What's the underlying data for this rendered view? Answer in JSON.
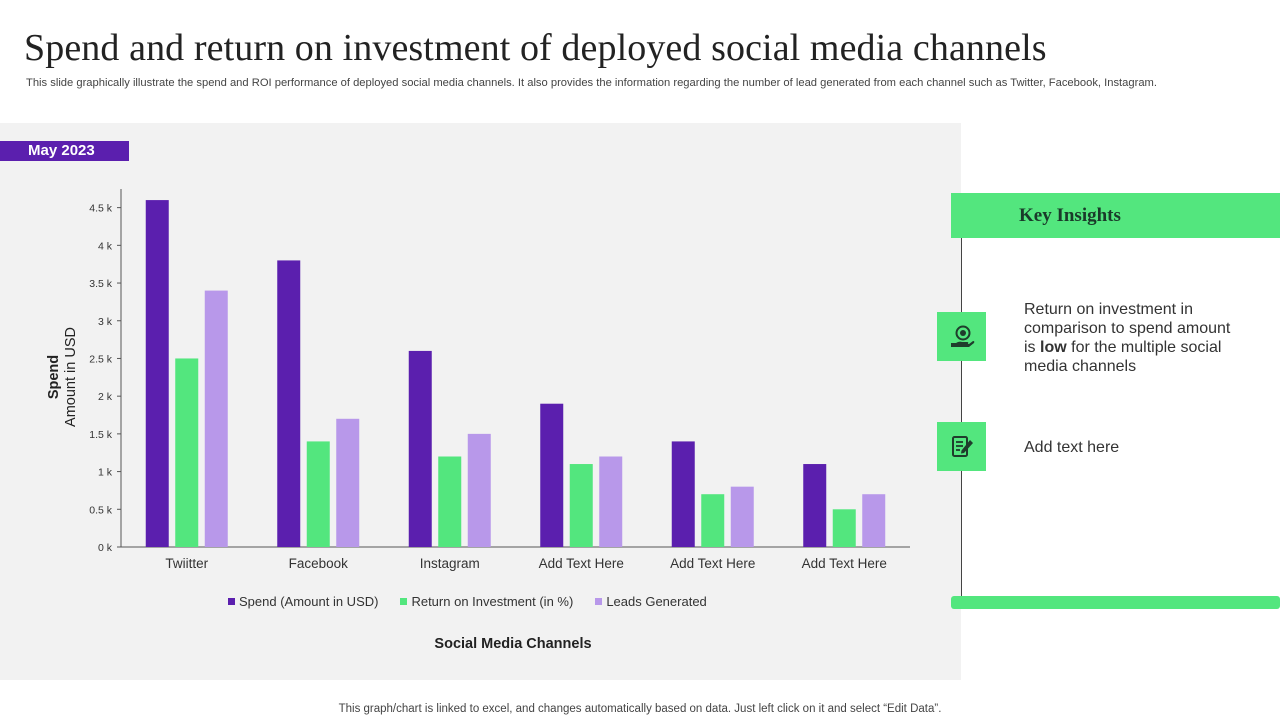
{
  "header": {
    "title": "Spend and return on investment of deployed social media channels",
    "subtitle": "This slide graphically illustrate the spend and ROI performance of deployed social media channels. It also provides the information regarding the number of lead generated from each channel such as Twitter, Facebook, Instagram."
  },
  "date_badge": "May 2023",
  "chart_data": {
    "type": "bar",
    "categories": [
      "Twiitter",
      "Facebook",
      "Instagram",
      "Add Text Here",
      "Add Text Here",
      "Add Text Here"
    ],
    "series": [
      {
        "name": "Spend (Amount in USD)",
        "color": "#5b1fae",
        "values": [
          4600,
          3800,
          2600,
          1900,
          1400,
          1100
        ]
      },
      {
        "name": "Return on Investment (in %)",
        "color": "#53e67e",
        "values": [
          2500,
          1400,
          1200,
          1100,
          700,
          500
        ]
      },
      {
        "name": "Leads Generated",
        "color": "#b898ea",
        "values": [
          3400,
          1700,
          1500,
          1200,
          800,
          700
        ]
      }
    ],
    "yticks": [
      0,
      500,
      1000,
      1500,
      2000,
      2500,
      3000,
      3500,
      4000,
      4500
    ],
    "ytick_labels": [
      "0 k",
      "0.5 k",
      "1 k",
      "1.5 k",
      "2 k",
      "2.5 k",
      "3 k",
      "3.5 k",
      "4 k",
      "4.5 k"
    ],
    "ylim": [
      0,
      4800
    ],
    "ylabel_bold": "Spend",
    "ylabel": "Amount in USD",
    "xlabel": "Social Media Channels",
    "legend_position": "bottom"
  },
  "insights": {
    "title": "Key Insights",
    "item1": {
      "icon": "money-hand-icon",
      "text_before": "Return on investment in comparison to spend amount is ",
      "text_bold": "low",
      "text_after": " for the multiple social media channels"
    },
    "item2": {
      "icon": "notepad-pen-icon",
      "text": "Add text here"
    }
  },
  "footnote": "This graph/chart is linked to excel, and changes automatically based on data. Just left click on it and select “Edit Data”."
}
